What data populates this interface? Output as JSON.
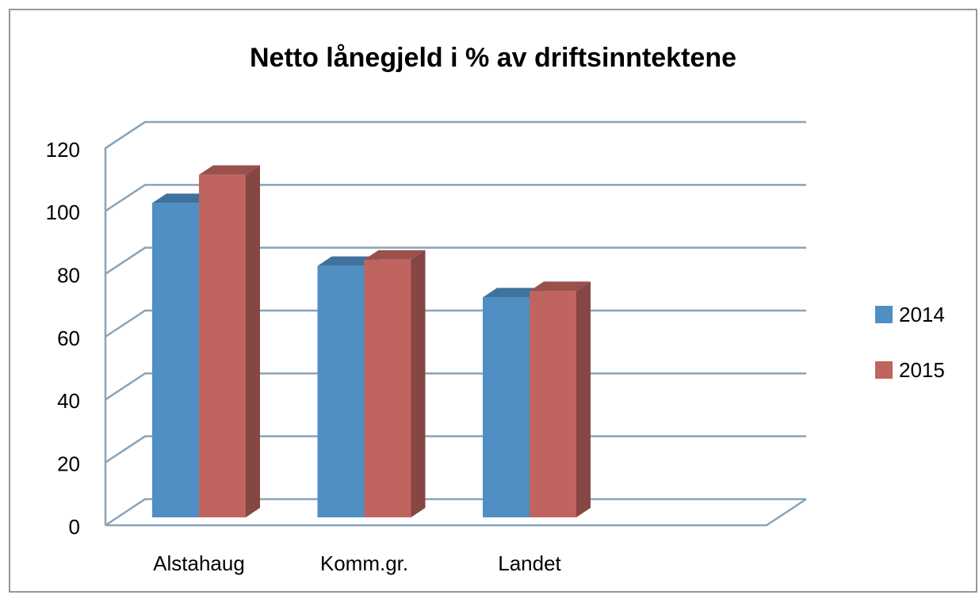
{
  "chart_data": {
    "type": "bar3d",
    "title": "Netto lånegjeld i % av driftsinntektene",
    "categories": [
      "Alstahaug",
      "Komm.gr.",
      "Landet"
    ],
    "series": [
      {
        "name": "2014",
        "color": "#4f8fc4",
        "values": [
          100,
          80,
          70
        ]
      },
      {
        "name": "2015",
        "color": "#c0645f",
        "values": [
          109,
          82,
          72
        ]
      }
    ],
    "ylim": [
      0,
      120
    ],
    "yticks": [
      0,
      20,
      40,
      60,
      80,
      100,
      120
    ],
    "grid": true,
    "legend": "right"
  }
}
